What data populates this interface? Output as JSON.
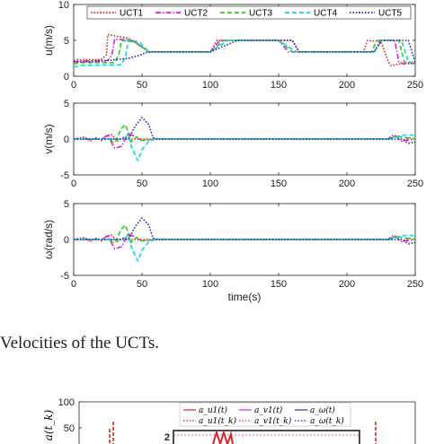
{
  "caption": "Velocities of the UCTs.",
  "chart_data": [
    {
      "type": "line",
      "xlabel": "",
      "ylabel": "u(m/s)",
      "xlim": [
        0,
        250
      ],
      "ylim": [
        0,
        10
      ],
      "xticks": [
        0,
        50,
        100,
        150,
        200,
        250
      ],
      "yticks": [
        0,
        5,
        10
      ],
      "legend_position": "top",
      "series": [
        {
          "name": "UCT1",
          "color": "#d62728",
          "style": "dotted",
          "x": [
            0,
            5,
            20,
            24,
            25,
            40,
            55,
            60,
            100,
            105,
            150,
            160,
            165,
            200,
            212,
            215,
            225,
            230,
            232,
            245,
            250
          ],
          "y": [
            2.2,
            2.3,
            2.3,
            3.0,
            5.8,
            5.3,
            3.4,
            3.4,
            3.4,
            5.0,
            5.0,
            5.0,
            3.4,
            3.4,
            3.4,
            5.0,
            4.8,
            2.2,
            1.5,
            1.9,
            1.8
          ]
        },
        {
          "name": "UCT2",
          "color": "#e81ed1",
          "style": "dashdot",
          "x": [
            0,
            5,
            25,
            28,
            30,
            43,
            55,
            60,
            100,
            107,
            150,
            157,
            162,
            200,
            220,
            225,
            235,
            238,
            242,
            250
          ],
          "y": [
            2.0,
            2.1,
            2.2,
            3.0,
            5.2,
            5.0,
            3.4,
            3.4,
            3.4,
            5.0,
            5.0,
            3.4,
            3.4,
            3.4,
            3.4,
            5.0,
            5.0,
            2.0,
            1.7,
            1.8
          ]
        },
        {
          "name": "UCT3",
          "color": "#2ecc1a",
          "style": "dashed",
          "x": [
            0,
            5,
            30,
            33,
            35,
            45,
            55,
            60,
            100,
            110,
            150,
            160,
            200,
            218,
            222,
            238,
            242,
            250
          ],
          "y": [
            1.7,
            1.9,
            1.9,
            3.0,
            5.0,
            4.8,
            3.4,
            3.4,
            3.4,
            5.0,
            5.0,
            3.4,
            3.4,
            3.4,
            5.0,
            5.0,
            2.0,
            1.8
          ]
        },
        {
          "name": "UCT4",
          "color": "#17d3e0",
          "style": "dashed",
          "x": [
            0,
            5,
            35,
            38,
            40,
            48,
            55,
            60,
            100,
            113,
            150,
            163,
            200,
            220,
            226,
            240,
            245,
            250
          ],
          "y": [
            1.3,
            1.5,
            1.6,
            2.8,
            5.1,
            4.8,
            3.4,
            3.4,
            3.4,
            5.0,
            5.0,
            3.4,
            3.4,
            3.4,
            5.0,
            5.0,
            2.0,
            1.9
          ]
        },
        {
          "name": "UCT5",
          "color": "#1f2fbf",
          "style": "dotted",
          "x": [
            0,
            10,
            20,
            30,
            40,
            50,
            52,
            60,
            100,
            120,
            150,
            160,
            165,
            200,
            220,
            225,
            245,
            250
          ],
          "y": [
            2.0,
            2.0,
            2.1,
            2.3,
            2.5,
            3.0,
            3.3,
            3.4,
            3.4,
            5.0,
            5.0,
            5.0,
            3.4,
            3.4,
            3.4,
            5.0,
            5.0,
            1.9
          ]
        }
      ]
    },
    {
      "type": "line",
      "xlabel": "",
      "ylabel": "v(m/s)",
      "xlim": [
        0,
        250
      ],
      "ylim": [
        -5,
        5
      ],
      "xticks": [
        0,
        50,
        100,
        150,
        200,
        250
      ],
      "yticks": [
        -5,
        0,
        5
      ],
      "series": [
        {
          "name": "UCT1",
          "color": "#d62728",
          "style": "dotted",
          "x": [
            0,
            8,
            12,
            16,
            20,
            24,
            28,
            32,
            36,
            40,
            60,
            230,
            235,
            240,
            245,
            250
          ],
          "y": [
            0,
            0.3,
            -0.3,
            0.2,
            -0.2,
            0.5,
            0.6,
            -0.3,
            0.2,
            0,
            0,
            0,
            0.4,
            -0.3,
            0.2,
            0
          ]
        },
        {
          "name": "UCT2",
          "color": "#e81ed1",
          "style": "dashdot",
          "x": [
            0,
            20,
            25,
            30,
            35,
            40,
            45,
            50,
            60,
            230,
            234,
            238,
            242,
            250
          ],
          "y": [
            0,
            0,
            0.5,
            -1.3,
            -1.0,
            0.8,
            0.3,
            -0.2,
            0,
            0,
            0.6,
            0.2,
            -0.2,
            0
          ]
        },
        {
          "name": "UCT3",
          "color": "#2ecc1a",
          "style": "dashed",
          "x": [
            0,
            25,
            30,
            35,
            38,
            42,
            46,
            50,
            60,
            232,
            236,
            240,
            250
          ],
          "y": [
            0,
            0,
            -0.5,
            1.5,
            2.0,
            -0.4,
            0.3,
            -0.2,
            0,
            0,
            0.5,
            0.3,
            0
          ]
        },
        {
          "name": "UCT4",
          "color": "#17d3e0",
          "style": "dashed",
          "x": [
            0,
            35,
            40,
            43,
            47,
            50,
            55,
            60,
            232,
            236,
            240,
            245,
            250
          ],
          "y": [
            0,
            0,
            0.5,
            -1.5,
            -3.0,
            -1.5,
            -0.3,
            0,
            0,
            0.2,
            0.5,
            0.6,
            0.5
          ]
        },
        {
          "name": "UCT5",
          "color": "#1f2fbf",
          "style": "dotted",
          "x": [
            0,
            40,
            45,
            50,
            55,
            58,
            62,
            100,
            240,
            245,
            250
          ],
          "y": [
            0,
            0,
            1.8,
            3.0,
            2.0,
            0.2,
            0,
            0,
            0,
            -0.6,
            -0.4
          ]
        }
      ]
    },
    {
      "type": "line",
      "xlabel": "time(s)",
      "ylabel": "ω(rad/s)",
      "xlim": [
        0,
        250
      ],
      "ylim": [
        -5,
        5
      ],
      "xticks": [
        0,
        50,
        100,
        150,
        200,
        250
      ],
      "yticks": [
        -5,
        0,
        5
      ],
      "series": [
        {
          "name": "UCT1",
          "color": "#d62728",
          "style": "dotted",
          "x": [
            0,
            8,
            12,
            16,
            20,
            24,
            28,
            32,
            36,
            40,
            60,
            230,
            235,
            240,
            245,
            250
          ],
          "y": [
            0,
            0.3,
            -0.3,
            0.2,
            -0.2,
            0.5,
            0.6,
            -0.3,
            0.2,
            0,
            0,
            0,
            0.4,
            -0.3,
            0.2,
            0
          ]
        },
        {
          "name": "UCT2",
          "color": "#e81ed1",
          "style": "dashdot",
          "x": [
            0,
            20,
            25,
            30,
            35,
            40,
            45,
            50,
            60,
            230,
            234,
            238,
            242,
            250
          ],
          "y": [
            0,
            0,
            0.5,
            -1.3,
            -1.0,
            0.8,
            0.3,
            -0.2,
            0,
            0,
            0.6,
            0.2,
            -0.2,
            0
          ]
        },
        {
          "name": "UCT3",
          "color": "#2ecc1a",
          "style": "dashed",
          "x": [
            0,
            25,
            30,
            35,
            38,
            42,
            46,
            50,
            60,
            232,
            236,
            240,
            250
          ],
          "y": [
            0,
            0,
            -0.5,
            1.5,
            2.0,
            -0.4,
            0.3,
            -0.2,
            0,
            0,
            0.5,
            0.3,
            0
          ]
        },
        {
          "name": "UCT4",
          "color": "#17d3e0",
          "style": "dashed",
          "x": [
            0,
            35,
            40,
            43,
            47,
            50,
            55,
            60,
            232,
            236,
            240,
            245,
            250
          ],
          "y": [
            0,
            0,
            0.5,
            -1.5,
            -3.0,
            -1.5,
            -0.3,
            0,
            0,
            0.2,
            0.5,
            0.6,
            0.5
          ]
        },
        {
          "name": "UCT5",
          "color": "#1f2fbf",
          "style": "dotted",
          "x": [
            0,
            40,
            45,
            50,
            55,
            58,
            62,
            100,
            240,
            245,
            250
          ],
          "y": [
            0,
            0,
            1.8,
            3.0,
            2.0,
            0.2,
            0,
            0,
            0,
            -0.6,
            -0.4
          ]
        }
      ]
    },
    {
      "type": "line",
      "partial": true,
      "ylabel": "a(t_k)",
      "yticks": [
        50,
        100
      ],
      "inset_ytick": "2",
      "legend": [
        {
          "label": "a_u1(t)",
          "color": "#d62728",
          "style": "solid"
        },
        {
          "label": "a_v1(t)",
          "color": "#e81ed1",
          "style": "solid"
        },
        {
          "label": "a_ω(t)",
          "color": "#1f2fbf",
          "style": "solid"
        },
        {
          "label": "a_u1(t_k)",
          "color": "#d62728",
          "style": "dotted"
        },
        {
          "label": "a_v1(t_k)",
          "color": "#e81ed1",
          "style": "dotted"
        },
        {
          "label": "a_ω(t_k)",
          "color": "#1f2fbf",
          "style": "dotted"
        }
      ]
    }
  ]
}
